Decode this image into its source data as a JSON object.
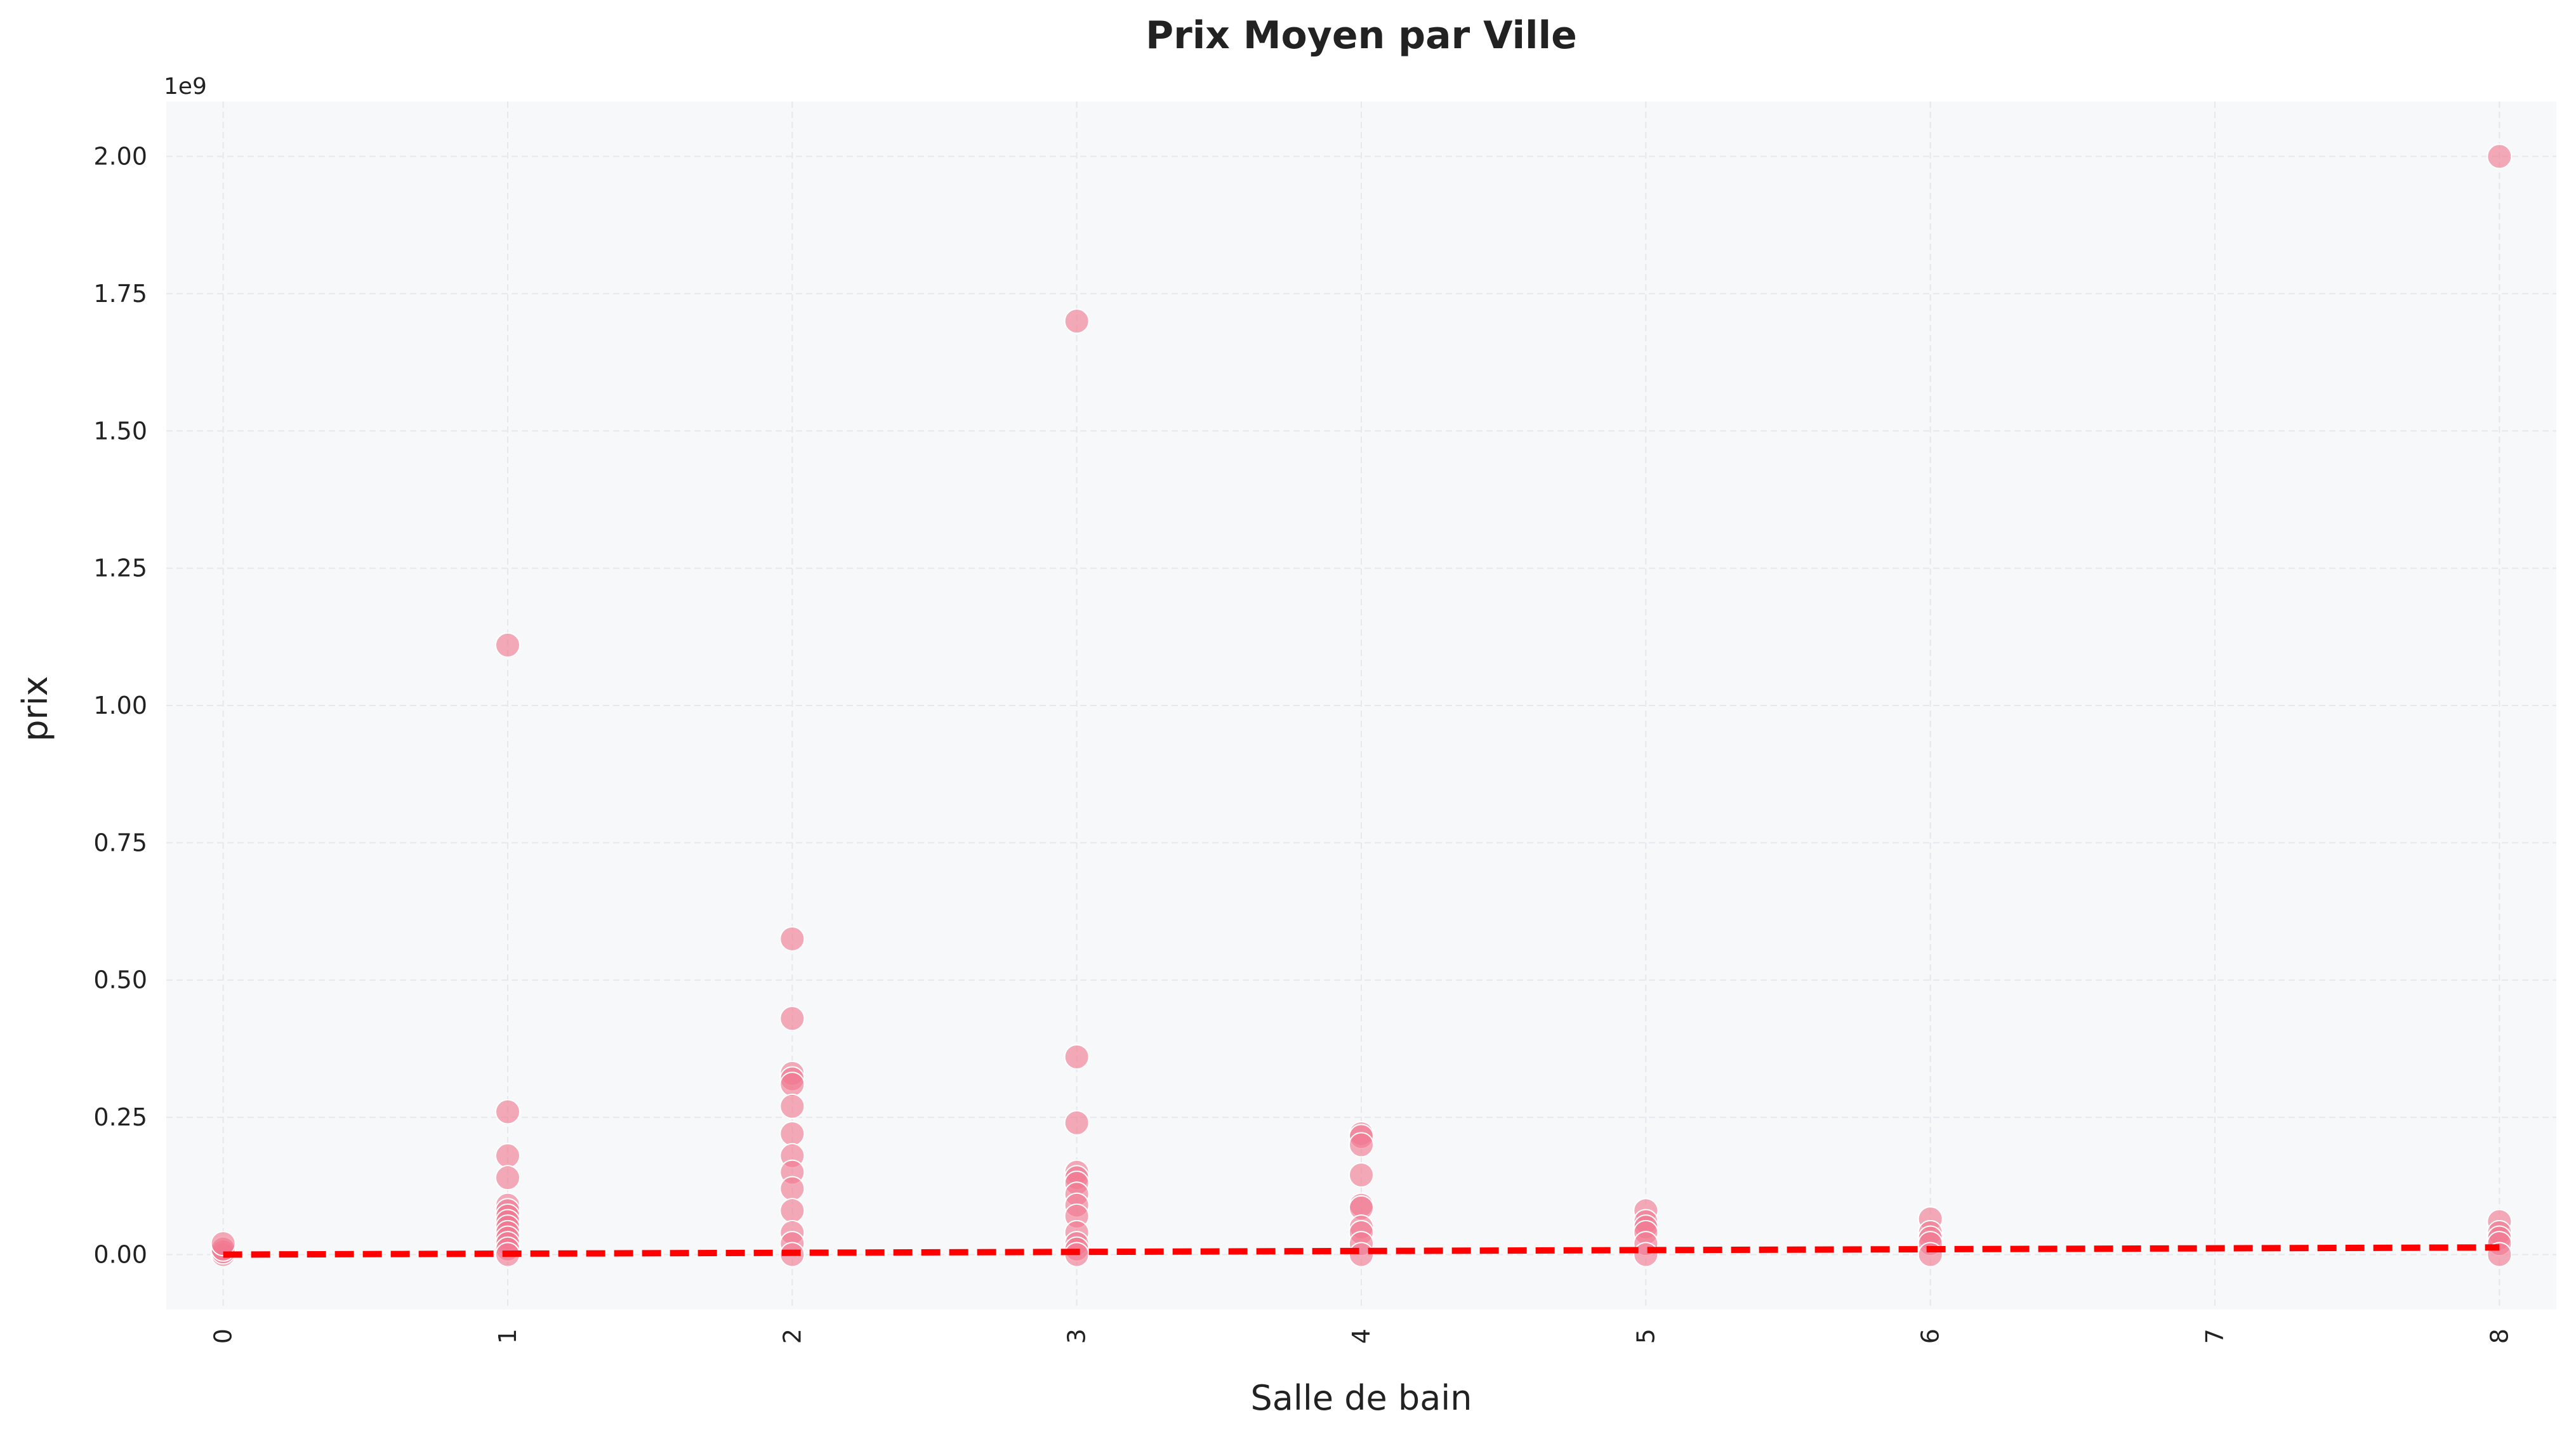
{
  "chart_data": {
    "type": "scatter",
    "title": "Prix Moyen par Ville",
    "xlabel": "Salle de bain",
    "ylabel": "prix",
    "y_offset_label": "1e9",
    "xlim": [
      -0.2,
      8.2
    ],
    "ylim": [
      -0.1,
      2.1
    ],
    "x_ticks": [
      0,
      1,
      2,
      3,
      4,
      5,
      6,
      7,
      8
    ],
    "x_tick_labels": [
      "0",
      "1",
      "2",
      "3",
      "4",
      "5",
      "6",
      "7",
      "8"
    ],
    "y_ticks": [
      0,
      0.25,
      0.5,
      0.75,
      1.0,
      1.25,
      1.5,
      1.75,
      2.0
    ],
    "y_tick_labels": [
      "0.00",
      "0.25",
      "0.50",
      "0.75",
      "1.00",
      "1.25",
      "1.50",
      "1.75",
      "2.00"
    ],
    "grid": true,
    "colors": {
      "points": "#f07890",
      "trend": "#ff0000",
      "plot_bg": "#f7f8fa",
      "grid": "#e6e8ee"
    },
    "points": [
      {
        "x": 0,
        "y": 0.0
      },
      {
        "x": 0,
        "y": 0.005
      },
      {
        "x": 0,
        "y": 0.01
      },
      {
        "x": 0,
        "y": 0.02
      },
      {
        "x": 1,
        "y": 1.11
      },
      {
        "x": 1,
        "y": 0.26
      },
      {
        "x": 1,
        "y": 0.18
      },
      {
        "x": 1,
        "y": 0.14
      },
      {
        "x": 1,
        "y": 0.09
      },
      {
        "x": 1,
        "y": 0.08
      },
      {
        "x": 1,
        "y": 0.07
      },
      {
        "x": 1,
        "y": 0.06
      },
      {
        "x": 1,
        "y": 0.05
      },
      {
        "x": 1,
        "y": 0.04
      },
      {
        "x": 1,
        "y": 0.03
      },
      {
        "x": 1,
        "y": 0.02
      },
      {
        "x": 1,
        "y": 0.01
      },
      {
        "x": 1,
        "y": 0.0
      },
      {
        "x": 2,
        "y": 0.575
      },
      {
        "x": 2,
        "y": 0.43
      },
      {
        "x": 2,
        "y": 0.33
      },
      {
        "x": 2,
        "y": 0.32
      },
      {
        "x": 2,
        "y": 0.31
      },
      {
        "x": 2,
        "y": 0.27
      },
      {
        "x": 2,
        "y": 0.22
      },
      {
        "x": 2,
        "y": 0.18
      },
      {
        "x": 2,
        "y": 0.15
      },
      {
        "x": 2,
        "y": 0.12
      },
      {
        "x": 2,
        "y": 0.08
      },
      {
        "x": 2,
        "y": 0.04
      },
      {
        "x": 2,
        "y": 0.02
      },
      {
        "x": 2,
        "y": 0.0
      },
      {
        "x": 3,
        "y": 1.7
      },
      {
        "x": 3,
        "y": 0.36
      },
      {
        "x": 3,
        "y": 0.24
      },
      {
        "x": 3,
        "y": 0.15
      },
      {
        "x": 3,
        "y": 0.14
      },
      {
        "x": 3,
        "y": 0.13
      },
      {
        "x": 3,
        "y": 0.11
      },
      {
        "x": 3,
        "y": 0.09
      },
      {
        "x": 3,
        "y": 0.07
      },
      {
        "x": 3,
        "y": 0.04
      },
      {
        "x": 3,
        "y": 0.02
      },
      {
        "x": 3,
        "y": 0.01
      },
      {
        "x": 3,
        "y": 0.0
      },
      {
        "x": 4,
        "y": 0.22
      },
      {
        "x": 4,
        "y": 0.215
      },
      {
        "x": 4,
        "y": 0.2
      },
      {
        "x": 4,
        "y": 0.145
      },
      {
        "x": 4,
        "y": 0.09
      },
      {
        "x": 4,
        "y": 0.085
      },
      {
        "x": 4,
        "y": 0.05
      },
      {
        "x": 4,
        "y": 0.04
      },
      {
        "x": 4,
        "y": 0.02
      },
      {
        "x": 4,
        "y": 0.0
      },
      {
        "x": 5,
        "y": 0.08
      },
      {
        "x": 5,
        "y": 0.06
      },
      {
        "x": 5,
        "y": 0.05
      },
      {
        "x": 5,
        "y": 0.04
      },
      {
        "x": 5,
        "y": 0.02
      },
      {
        "x": 5,
        "y": 0.0
      },
      {
        "x": 6,
        "y": 0.065
      },
      {
        "x": 6,
        "y": 0.04
      },
      {
        "x": 6,
        "y": 0.03
      },
      {
        "x": 6,
        "y": 0.02
      },
      {
        "x": 6,
        "y": 0.0
      },
      {
        "x": 8,
        "y": 2.0
      },
      {
        "x": 8,
        "y": 0.06
      },
      {
        "x": 8,
        "y": 0.04
      },
      {
        "x": 8,
        "y": 0.03
      },
      {
        "x": 8,
        "y": 0.02
      },
      {
        "x": 8,
        "y": 0.0
      }
    ],
    "trend_line": {
      "x": [
        0,
        8
      ],
      "y": [
        0.0,
        0.013
      ]
    }
  }
}
